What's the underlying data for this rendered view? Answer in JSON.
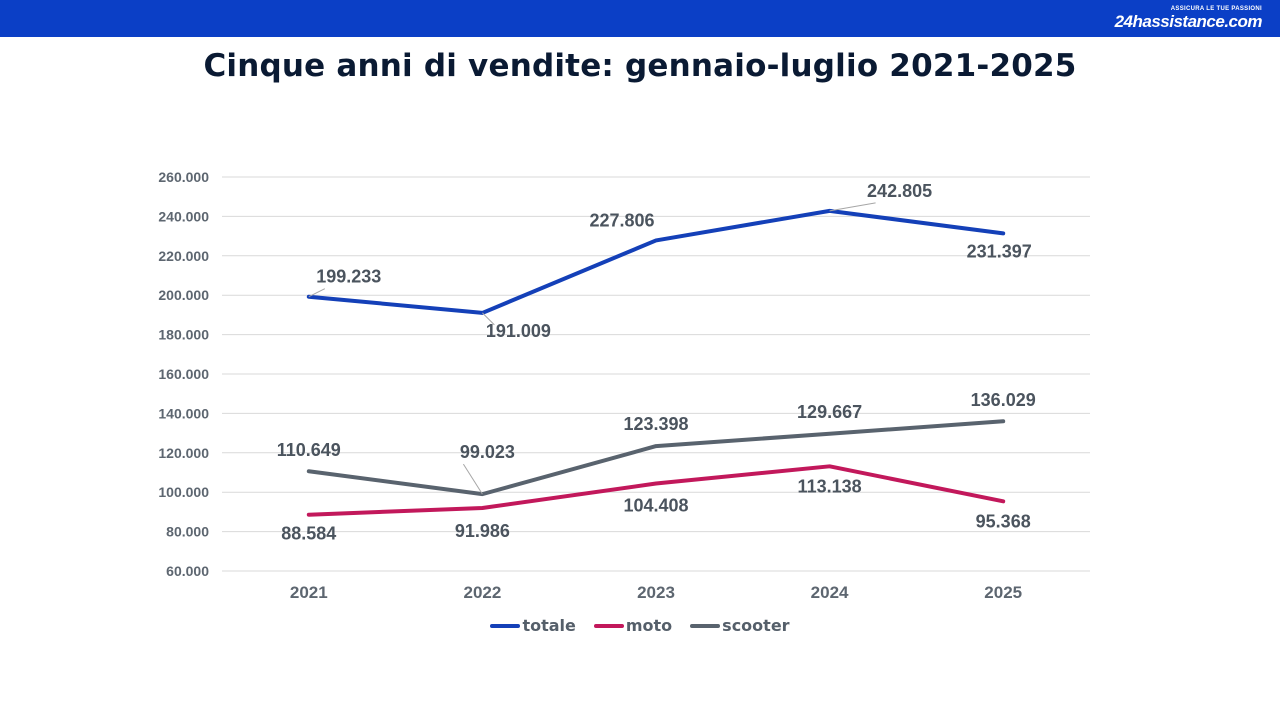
{
  "header": {
    "logo_tagline": "ASSICURA LE TUE PASSIONI",
    "logo_text": "24hassistance.com",
    "bar_color": "#0b3fc6"
  },
  "chart_data": {
    "type": "line",
    "title": "Cinque anni di vendite: gennaio-luglio 2021-2025",
    "categories": [
      "2021",
      "2022",
      "2023",
      "2024",
      "2025"
    ],
    "ylim": [
      60000,
      260000
    ],
    "ytick_step": 20000,
    "ytick_labels": [
      "60.000",
      "80.000",
      "100.000",
      "120.000",
      "140.000",
      "160.000",
      "180.000",
      "200.000",
      "220.000",
      "240.000",
      "260.000"
    ],
    "grid": true,
    "legend_position": "bottom",
    "series": [
      {
        "name": "totale",
        "color": "#1440b8",
        "values": [
          199233,
          191009,
          227806,
          242805,
          231397
        ],
        "labels": [
          "199.233",
          "191.009",
          "227.806",
          "242.805",
          "231.397"
        ]
      },
      {
        "name": "moto",
        "color": "#c2185b",
        "values": [
          88584,
          91986,
          104408,
          113138,
          95368
        ],
        "labels": [
          "88.584",
          "91.986",
          "104.408",
          "113.138",
          "95.368"
        ]
      },
      {
        "name": "scooter",
        "color": "#59636e",
        "values": [
          110649,
          99023,
          123398,
          129667,
          136029
        ],
        "labels": [
          "110.649",
          "99.023",
          "123.398",
          "129.667",
          "136.029"
        ]
      }
    ]
  }
}
